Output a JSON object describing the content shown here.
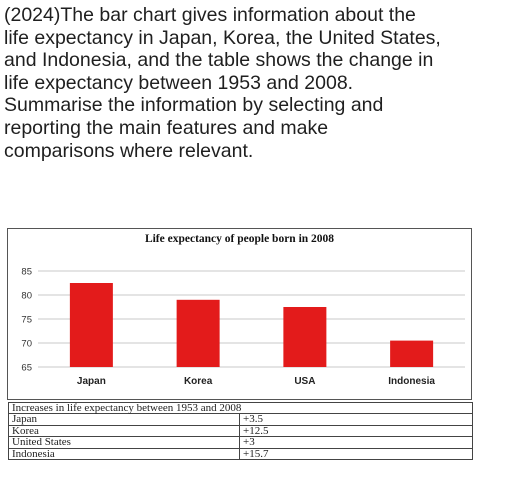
{
  "task": {
    "prompt": "(2024)The bar chart gives information about the\nlife expectancy in Japan, Korea, the United States,\nand Indonesia, and the table shows the change in\nlife expectancy between 1953 and 2008.\nSummarise the information by selecting and\nreporting the main features and make\ncomparisons where relevant."
  },
  "chart_data": {
    "type": "bar",
    "title": "Life expectancy of people born in 2008",
    "categories": [
      "Japan",
      "Korea",
      "USA",
      "Indonesia"
    ],
    "values": [
      82.5,
      79,
      77.5,
      70.5
    ],
    "ylim": [
      65,
      85
    ],
    "yticks": [
      65,
      70,
      75,
      80,
      85
    ],
    "xlabel": "",
    "ylabel": "",
    "grid": true,
    "bar_color": "#e31b1b"
  },
  "table": {
    "header": "Increases in life expectancy between 1953 and 2008",
    "rows": [
      {
        "country": "Japan",
        "increase": "+3.5"
      },
      {
        "country": "Korea",
        "increase": "+12.5"
      },
      {
        "country": "United States",
        "increase": "+3"
      },
      {
        "country": "Indonesia",
        "increase": "+15.7"
      }
    ]
  }
}
